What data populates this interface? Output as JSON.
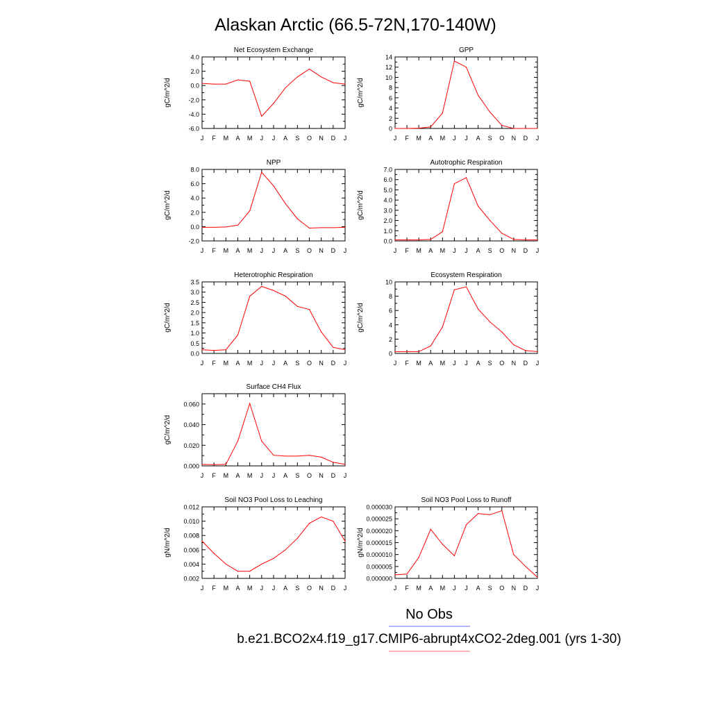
{
  "figure": {
    "title": "Alaskan Arctic (66.5-72N,170-140W)"
  },
  "legend": {
    "obs_label": "No Obs",
    "obs_color": "#6a6aff",
    "model_label": "b.e21.BCO2x4.f19_g17.CMIP6-abrupt4xCO2-2deg.001 (yrs 1-30)",
    "model_color": "#ff6a6a"
  },
  "chart_data": [
    {
      "type": "line",
      "title": "Net Ecosystem Exchange",
      "ylabel": "gC/m^2/d",
      "x": [
        "J",
        "F",
        "M",
        "A",
        "M",
        "J",
        "J",
        "A",
        "S",
        "O",
        "N",
        "D",
        "J"
      ],
      "ylim": [
        -6.0,
        4.0
      ],
      "yticks": [
        "-6.0",
        "-4.0",
        "-2.0",
        "0.0",
        "2.0",
        "4.0"
      ],
      "grid": false,
      "series": [
        {
          "color": "#ff0000",
          "values": [
            0.3,
            0.2,
            0.2,
            0.8,
            0.6,
            -4.3,
            -2.5,
            -0.3,
            1.2,
            2.3,
            1.2,
            0.4,
            0.2
          ]
        }
      ]
    },
    {
      "type": "line",
      "title": "GPP",
      "ylabel": "gC/m^2/d",
      "x": [
        "J",
        "F",
        "M",
        "A",
        "M",
        "J",
        "J",
        "A",
        "S",
        "O",
        "N",
        "D",
        "J"
      ],
      "ylim": [
        0,
        14
      ],
      "yticks": [
        "0",
        "2",
        "4",
        "6",
        "8",
        "10",
        "12",
        "14"
      ],
      "grid": false,
      "series": [
        {
          "color": "#ff0000",
          "values": [
            0.0,
            0.0,
            0.05,
            0.3,
            3.0,
            13.2,
            12.0,
            6.5,
            3.2,
            0.6,
            0.0,
            0.0,
            0.0
          ]
        }
      ]
    },
    {
      "type": "line",
      "title": "NPP",
      "ylabel": "gC/m^2/d",
      "x": [
        "J",
        "F",
        "M",
        "A",
        "M",
        "J",
        "J",
        "A",
        "S",
        "O",
        "N",
        "D",
        "J"
      ],
      "ylim": [
        -2.0,
        8.0
      ],
      "yticks": [
        "-2.0",
        "0.0",
        "2.0",
        "4.0",
        "6.0",
        "8.0"
      ],
      "grid": false,
      "series": [
        {
          "color": "#ff0000",
          "values": [
            -0.1,
            -0.1,
            -0.05,
            0.2,
            2.2,
            7.6,
            5.7,
            3.2,
            1.1,
            -0.2,
            -0.15,
            -0.15,
            -0.1
          ]
        }
      ]
    },
    {
      "type": "line",
      "title": "Autotrophic Respiration",
      "ylabel": "gC/m^2/d",
      "x": [
        "J",
        "F",
        "M",
        "A",
        "M",
        "J",
        "J",
        "A",
        "S",
        "O",
        "N",
        "D",
        "J"
      ],
      "ylim": [
        0,
        7.0
      ],
      "yticks": [
        "0.0",
        "1.0",
        "2.0",
        "3.0",
        "4.0",
        "5.0",
        "6.0",
        "7.0"
      ],
      "grid": false,
      "series": [
        {
          "color": "#ff0000",
          "values": [
            0.1,
            0.1,
            0.1,
            0.15,
            0.9,
            5.6,
            6.2,
            3.4,
            2.0,
            0.75,
            0.15,
            0.1,
            0.1
          ]
        }
      ]
    },
    {
      "type": "line",
      "title": "Heterotrophic Respiration",
      "ylabel": "gC/m^2/d",
      "x": [
        "J",
        "F",
        "M",
        "A",
        "M",
        "J",
        "J",
        "A",
        "S",
        "O",
        "N",
        "D",
        "J"
      ],
      "ylim": [
        0,
        3.5
      ],
      "yticks": [
        "0.0",
        "0.5",
        "1.0",
        "1.5",
        "2.0",
        "2.5",
        "3.0",
        "3.5"
      ],
      "grid": false,
      "series": [
        {
          "color": "#ff0000",
          "values": [
            0.18,
            0.15,
            0.18,
            0.9,
            2.8,
            3.28,
            3.08,
            2.8,
            2.3,
            2.15,
            1.05,
            0.3,
            0.18
          ]
        }
      ]
    },
    {
      "type": "line",
      "title": "Ecosystem Respiration",
      "ylabel": "gC/m^2/d",
      "x": [
        "J",
        "F",
        "M",
        "A",
        "M",
        "J",
        "J",
        "A",
        "S",
        "O",
        "N",
        "D",
        "J"
      ],
      "ylim": [
        0,
        10
      ],
      "yticks": [
        "0",
        "2",
        "4",
        "6",
        "8",
        "10"
      ],
      "grid": false,
      "series": [
        {
          "color": "#ff0000",
          "values": [
            0.25,
            0.25,
            0.25,
            1.05,
            3.7,
            8.9,
            9.3,
            6.2,
            4.4,
            3.0,
            1.2,
            0.4,
            0.25
          ]
        }
      ]
    },
    {
      "type": "line",
      "title": "Surface CH4 Flux",
      "ylabel": "gC/m^2/d",
      "x": [
        "J",
        "F",
        "M",
        "A",
        "M",
        "J",
        "J",
        "A",
        "S",
        "O",
        "N",
        "D",
        "J"
      ],
      "ylim": [
        0,
        0.07
      ],
      "yticks": [
        "0.000",
        "0.020",
        "0.040",
        "0.060"
      ],
      "ytick_values": [
        0,
        0.02,
        0.04,
        0.06
      ],
      "grid": false,
      "series": [
        {
          "color": "#ff0000",
          "values": [
            0.0015,
            0.0012,
            0.0015,
            0.024,
            0.0605,
            0.024,
            0.0103,
            0.0095,
            0.0095,
            0.0102,
            0.0085,
            0.0035,
            0.0015
          ]
        }
      ]
    },
    {
      "type": "line",
      "title": "Soil NO3 Pool Loss to Leaching",
      "ylabel": "gN/m^2/d",
      "x": [
        "J",
        "F",
        "M",
        "A",
        "M",
        "J",
        "J",
        "A",
        "S",
        "O",
        "N",
        "D",
        "J"
      ],
      "ylim": [
        0.002,
        0.012
      ],
      "yticks": [
        "0.002",
        "0.004",
        "0.006",
        "0.008",
        "0.010",
        "0.012"
      ],
      "grid": false,
      "series": [
        {
          "color": "#ff0000",
          "values": [
            0.0072,
            0.0055,
            0.004,
            0.003,
            0.003,
            0.004,
            0.0048,
            0.006,
            0.0076,
            0.0097,
            0.0106,
            0.01,
            0.0072
          ]
        }
      ]
    },
    {
      "type": "line",
      "title": "Soil NO3 Pool Loss to Runoff",
      "ylabel": "gN/m^2/d",
      "x": [
        "J",
        "F",
        "M",
        "A",
        "M",
        "J",
        "J",
        "A",
        "S",
        "O",
        "N",
        "D",
        "J"
      ],
      "ylim": [
        0,
        3e-05
      ],
      "yticks": [
        "0.000000",
        "0.000005",
        "0.000010",
        "0.000015",
        "0.000020",
        "0.000025",
        "0.000030"
      ],
      "grid": false,
      "series": [
        {
          "color": "#ff0000",
          "values": [
            1.5e-06,
            1.8e-06,
            8.8e-06,
            2.06e-05,
            1.43e-05,
            9.5e-06,
            2.25e-05,
            2.72e-05,
            2.67e-05,
            2.84e-05,
            1e-05,
            5e-06,
            5e-07
          ]
        }
      ]
    }
  ]
}
